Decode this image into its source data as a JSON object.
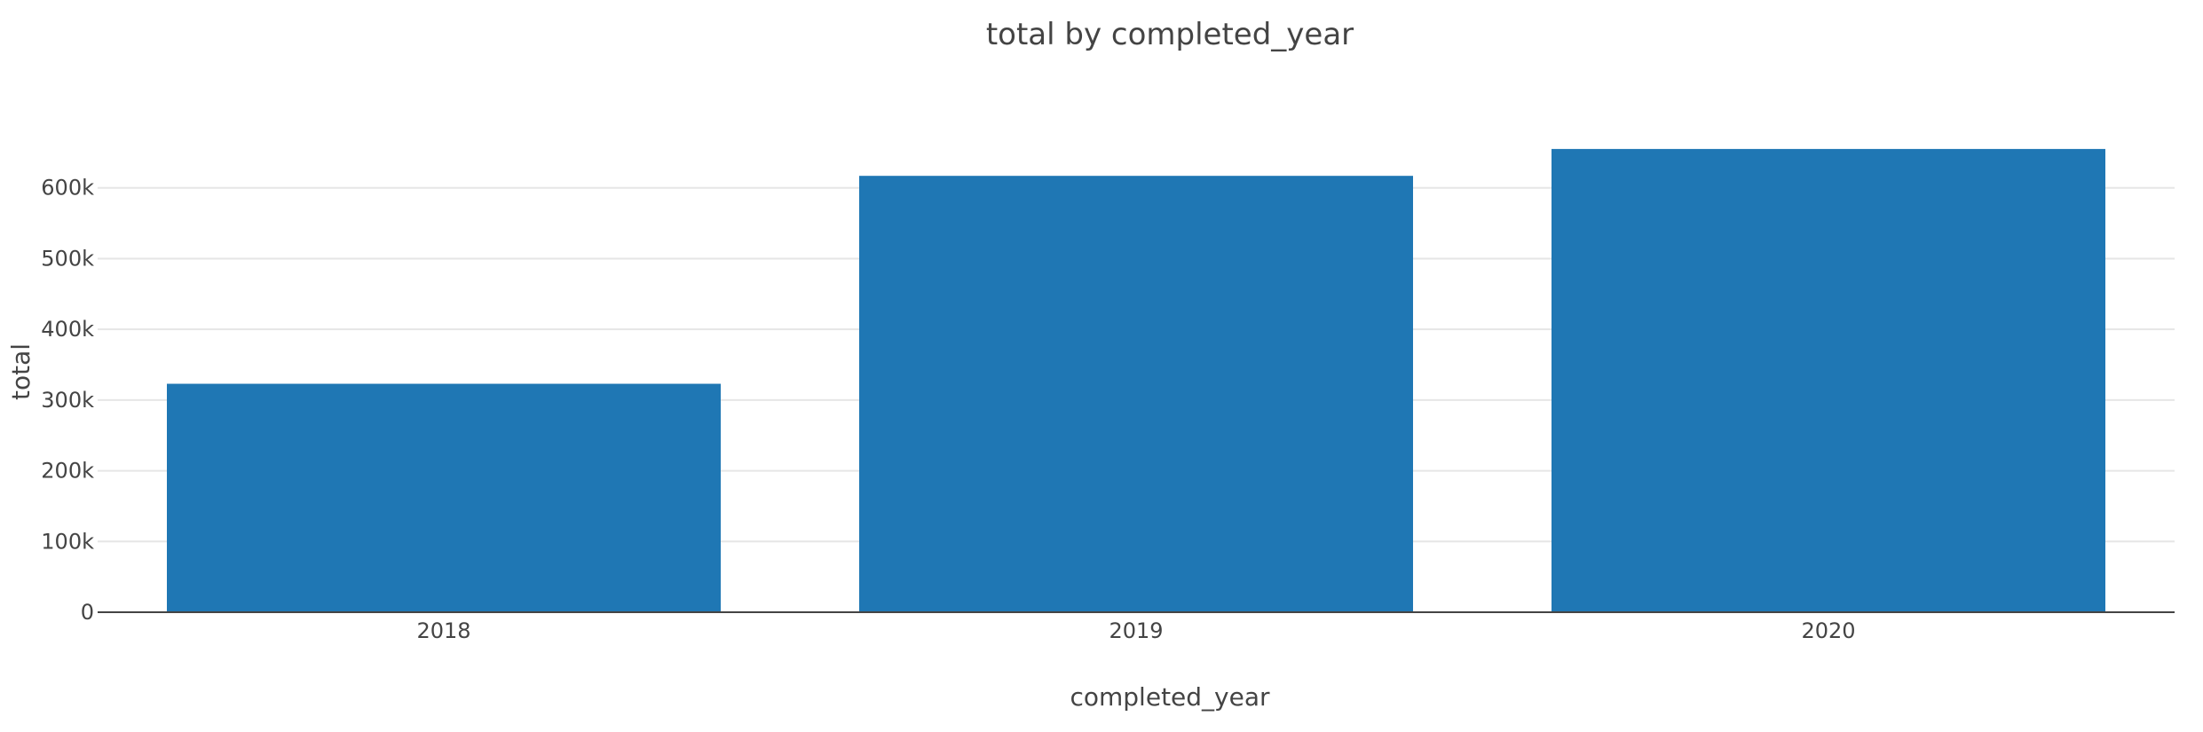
{
  "chart_data": {
    "type": "bar",
    "title": "total by completed_year",
    "xlabel": "completed_year",
    "ylabel": "total",
    "categories": [
      "2018",
      "2019",
      "2020"
    ],
    "values": [
      323000,
      617000,
      655000
    ],
    "ylim": [
      0,
      690000
    ],
    "yticks": [
      0,
      100000,
      200000,
      300000,
      400000,
      500000,
      600000
    ],
    "ytick_labels": [
      "0",
      "100k",
      "200k",
      "300k",
      "400k",
      "500k",
      "600k"
    ],
    "grid": true,
    "legend": false,
    "bar_color": "#1f77b4",
    "grid_color": "#e6e6e6",
    "axis_color": "#444444"
  }
}
